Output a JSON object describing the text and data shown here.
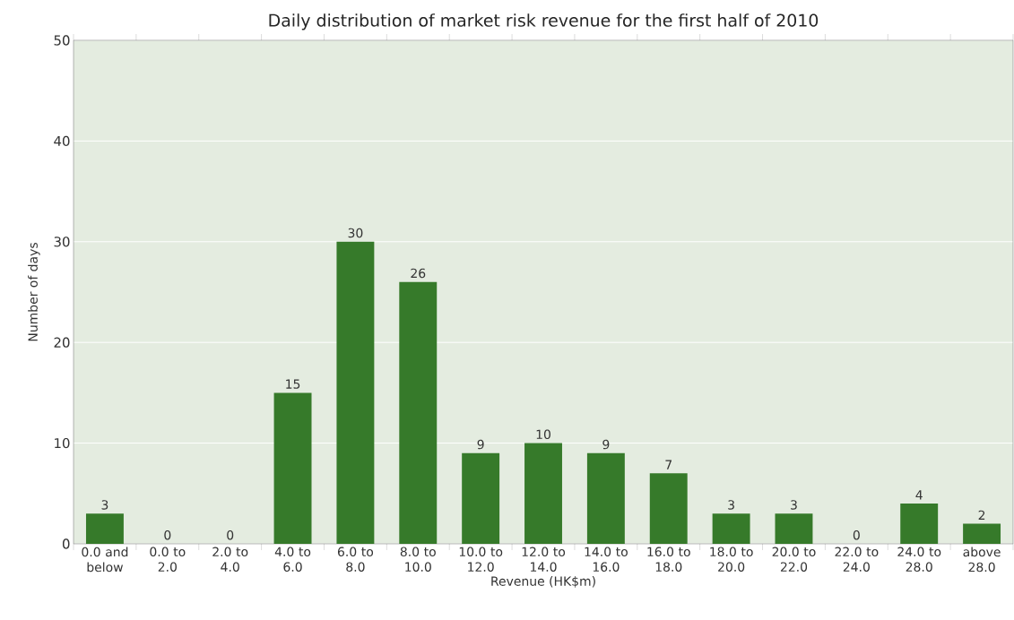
{
  "chart_data": {
    "type": "bar",
    "title": "Daily distribution of market risk revenue for the first half of 2010",
    "xlabel": "Revenue (HK$m)",
    "ylabel": "Number of days",
    "categories": [
      "0.0 and below",
      "0.0 to 2.0",
      "2.0 to 4.0",
      "4.0 to 6.0",
      "6.0 to 8.0",
      "8.0 to 10.0",
      "10.0 to 12.0",
      "12.0 to 14.0",
      "14.0 to 16.0",
      "16.0 to 18.0",
      "18.0 to 20.0",
      "20.0 to 22.0",
      "22.0 to 24.0",
      "24.0 to 28.0",
      "above 28.0"
    ],
    "values": [
      3,
      0,
      0,
      15,
      30,
      26,
      9,
      10,
      9,
      7,
      3,
      3,
      0,
      4,
      2
    ],
    "color": "#367a2a",
    "ylim": [
      0,
      50
    ],
    "yticks": [
      0,
      10,
      20,
      30,
      40,
      50
    ],
    "grid": "y",
    "data_labels": true
  }
}
